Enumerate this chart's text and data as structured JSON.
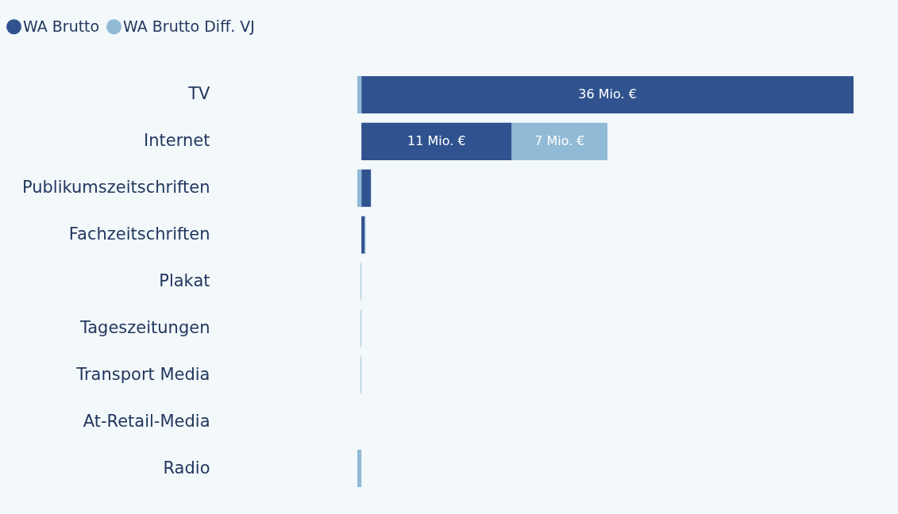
{
  "chart_data": {
    "type": "bar",
    "orientation": "horizontal",
    "stacked": true,
    "legend": "top left",
    "categories": [
      "TV",
      "Internet",
      "Publikumszeitschriften",
      "Fachzeitschriften",
      "Plakat",
      "Tageszeitungen",
      "Transport Media",
      "At-Retail-Media",
      "Radio"
    ],
    "series": [
      {
        "name": "WA Brutto",
        "color": "#30538f",
        "values": [
          36,
          11,
          0.7,
          0.25,
          null,
          null,
          null,
          null,
          null
        ],
        "value_labels": [
          "36 Mio. €",
          "11 Mio. €",
          null,
          null,
          null,
          null,
          null,
          null,
          null
        ]
      },
      {
        "name": "WA Brutto Diff. VJ",
        "color": "#91bad6",
        "values": [
          -0.3,
          7,
          -0.3,
          0.05,
          -0.05,
          -0.05,
          -0.05,
          null,
          -0.3
        ],
        "value_labels": [
          null,
          "7 Mio. €",
          null,
          null,
          null,
          null,
          null,
          null,
          null
        ]
      }
    ]
  }
}
